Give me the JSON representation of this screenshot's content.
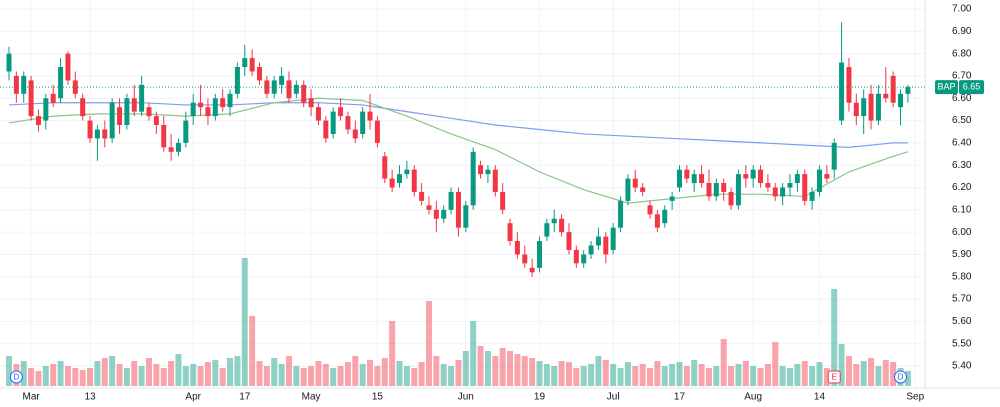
{
  "chart_data": {
    "type": "candlestick",
    "symbol": "BAP",
    "last_price": {
      "value": 6.65,
      "label": "6.65"
    },
    "up_color": "#089981",
    "down_color": "#f23645",
    "open": [
      6.72,
      6.7,
      6.62,
      6.68,
      6.52,
      6.5,
      6.62,
      6.6,
      6.8,
      6.68,
      6.6,
      6.5,
      6.42,
      6.46,
      6.42,
      6.56,
      6.48,
      6.6,
      6.54,
      6.56,
      6.52,
      6.48,
      6.38,
      6.36,
      6.4,
      6.52,
      6.58,
      6.56,
      6.52,
      6.6,
      6.56,
      6.62,
      6.74,
      6.78,
      6.74,
      6.68,
      6.62,
      6.66,
      6.68,
      6.62,
      6.66,
      6.6,
      6.56,
      6.5,
      6.44,
      6.56,
      6.52,
      6.46,
      6.44,
      6.54,
      6.5,
      6.34,
      6.24,
      6.22,
      6.26,
      6.28,
      6.18,
      6.12,
      6.1,
      6.06,
      6.1,
      6.18,
      6.02,
      6.12,
      6.3,
      6.26,
      6.28,
      6.18,
      6.04,
      5.96,
      5.9,
      5.84,
      5.84,
      5.98,
      6.04,
      6.06,
      6.0,
      5.92,
      5.86,
      5.9,
      5.94,
      5.98,
      5.92,
      6.02,
      6.14,
      6.24,
      6.2,
      6.12,
      6.08,
      6.04,
      6.14,
      6.2,
      6.28,
      6.22,
      6.26,
      6.22,
      6.16,
      6.22,
      6.18,
      6.12,
      6.26,
      6.24,
      6.28,
      6.22,
      6.2,
      6.16,
      6.2,
      6.22,
      6.26,
      6.14,
      6.18,
      6.26,
      6.28,
      6.5,
      6.74,
      6.58,
      6.52,
      6.62,
      6.5,
      6.62,
      6.7,
      6.56,
      6.62
    ],
    "high": [
      6.83,
      6.72,
      6.72,
      6.7,
      6.55,
      6.62,
      6.66,
      6.78,
      6.81,
      6.72,
      6.62,
      6.52,
      6.48,
      6.5,
      6.6,
      6.6,
      6.62,
      6.66,
      6.7,
      6.58,
      6.54,
      6.52,
      6.44,
      6.42,
      6.54,
      6.62,
      6.66,
      6.6,
      6.62,
      6.64,
      6.64,
      6.76,
      6.84,
      6.82,
      6.76,
      6.7,
      6.7,
      6.74,
      6.72,
      6.68,
      6.68,
      6.64,
      6.58,
      6.52,
      6.56,
      6.6,
      6.54,
      6.5,
      6.56,
      6.62,
      6.52,
      6.36,
      6.28,
      6.3,
      6.32,
      6.3,
      6.22,
      6.16,
      6.14,
      6.12,
      6.2,
      6.2,
      6.14,
      6.38,
      6.32,
      6.3,
      6.3,
      6.22,
      6.06,
      6.0,
      5.94,
      5.88,
      5.98,
      6.06,
      6.1,
      6.08,
      6.04,
      5.94,
      5.92,
      5.96,
      6.02,
      6.0,
      6.04,
      6.16,
      6.26,
      6.28,
      6.22,
      6.14,
      6.1,
      6.12,
      6.18,
      6.3,
      6.3,
      6.28,
      6.3,
      6.28,
      6.24,
      6.24,
      6.2,
      6.28,
      6.3,
      6.3,
      6.3,
      6.26,
      6.22,
      6.22,
      6.26,
      6.28,
      6.28,
      6.2,
      6.3,
      6.3,
      6.42,
      6.94,
      6.78,
      6.62,
      6.64,
      6.66,
      6.66,
      6.74,
      6.72,
      6.64,
      6.66
    ],
    "low": [
      6.68,
      6.58,
      6.58,
      6.5,
      6.45,
      6.46,
      6.56,
      6.58,
      6.66,
      6.6,
      6.5,
      6.4,
      6.32,
      6.38,
      6.4,
      6.44,
      6.46,
      6.52,
      6.52,
      6.5,
      6.44,
      6.36,
      6.32,
      6.34,
      6.38,
      6.48,
      6.52,
      6.48,
      6.5,
      6.54,
      6.52,
      6.6,
      6.7,
      6.7,
      6.66,
      6.6,
      6.6,
      6.62,
      6.58,
      6.6,
      6.56,
      6.52,
      6.48,
      6.4,
      6.42,
      6.5,
      6.44,
      6.4,
      6.42,
      6.46,
      6.38,
      6.22,
      6.18,
      6.2,
      6.24,
      6.16,
      6.12,
      6.08,
      6.0,
      6.04,
      6.08,
      5.98,
      6.0,
      6.1,
      6.24,
      6.22,
      6.16,
      6.08,
      5.94,
      5.88,
      5.84,
      5.8,
      5.82,
      5.96,
      6.0,
      5.98,
      5.9,
      5.84,
      5.84,
      5.88,
      5.92,
      5.86,
      5.9,
      6.0,
      6.12,
      6.18,
      6.16,
      6.06,
      6.0,
      6.02,
      6.1,
      6.18,
      6.22,
      6.18,
      6.2,
      6.14,
      6.14,
      6.14,
      6.1,
      6.1,
      6.2,
      6.2,
      6.2,
      6.18,
      6.14,
      6.12,
      6.16,
      6.18,
      6.12,
      6.1,
      6.16,
      6.22,
      6.24,
      6.48,
      6.54,
      6.48,
      6.44,
      6.46,
      6.48,
      6.58,
      6.56,
      6.48,
      6.58
    ],
    "close": [
      6.8,
      6.62,
      6.7,
      6.52,
      6.48,
      6.6,
      6.58,
      6.74,
      6.68,
      6.62,
      6.52,
      6.42,
      6.46,
      6.42,
      6.58,
      6.48,
      6.6,
      6.54,
      6.66,
      6.52,
      6.48,
      6.38,
      6.36,
      6.4,
      6.5,
      6.58,
      6.56,
      6.52,
      6.6,
      6.56,
      6.62,
      6.74,
      6.78,
      6.72,
      6.68,
      6.62,
      6.68,
      6.7,
      6.6,
      6.66,
      6.58,
      6.56,
      6.5,
      6.42,
      6.54,
      6.52,
      6.46,
      6.42,
      6.54,
      6.5,
      6.4,
      6.24,
      6.2,
      6.26,
      6.28,
      6.18,
      6.14,
      6.1,
      6.06,
      6.1,
      6.18,
      6.02,
      6.12,
      6.36,
      6.26,
      6.28,
      6.18,
      6.1,
      5.96,
      5.9,
      5.86,
      5.82,
      5.96,
      6.04,
      6.06,
      6.0,
      5.92,
      5.86,
      5.9,
      5.94,
      5.98,
      5.9,
      6.02,
      6.14,
      6.24,
      6.2,
      6.18,
      6.08,
      6.02,
      6.1,
      6.16,
      6.28,
      6.24,
      6.26,
      6.22,
      6.16,
      6.22,
      6.18,
      6.12,
      6.26,
      6.24,
      6.28,
      6.22,
      6.2,
      6.16,
      6.2,
      6.22,
      6.26,
      6.14,
      6.18,
      6.28,
      6.24,
      6.4,
      6.76,
      6.58,
      6.52,
      6.6,
      6.5,
      6.62,
      6.6,
      6.58,
      6.62,
      6.65
    ],
    "volume": [
      30,
      22,
      25,
      18,
      15,
      20,
      22,
      25,
      20,
      18,
      16,
      18,
      25,
      28,
      30,
      22,
      18,
      25,
      20,
      28,
      22,
      18,
      25,
      32,
      20,
      22,
      20,
      24,
      26,
      18,
      28,
      30,
      128,
      70,
      25,
      20,
      28,
      22,
      30,
      20,
      18,
      20,
      25,
      22,
      18,
      20,
      24,
      30,
      22,
      26,
      20,
      28,
      65,
      25,
      20,
      18,
      24,
      85,
      30,
      22,
      20,
      26,
      35,
      65,
      40,
      35,
      30,
      38,
      35,
      32,
      30,
      28,
      25,
      22,
      20,
      25,
      24,
      18,
      20,
      22,
      30,
      26,
      22,
      18,
      24,
      20,
      22,
      18,
      25,
      20,
      22,
      24,
      20,
      26,
      22,
      18,
      20,
      47,
      20,
      22,
      25,
      20,
      18,
      22,
      44,
      20,
      18,
      22,
      25,
      20,
      24,
      18,
      97,
      42,
      30,
      22,
      25,
      28,
      20,
      26,
      24,
      18,
      15
    ],
    "vlim": [
      0,
      140
    ],
    "moving_averages": [
      {
        "color": "#7f9cf0",
        "x": [
          0,
          6,
          12,
          18,
          24,
          30,
          36,
          42,
          48,
          54,
          60,
          66,
          72,
          78,
          84,
          90,
          96,
          102,
          108,
          114,
          120,
          122
        ],
        "values": [
          6.57,
          6.58,
          6.58,
          6.58,
          6.57,
          6.57,
          6.58,
          6.58,
          6.57,
          6.54,
          6.51,
          6.48,
          6.46,
          6.44,
          6.43,
          6.42,
          6.41,
          6.4,
          6.39,
          6.38,
          6.4,
          6.4
        ]
      },
      {
        "color": "#8bc48a",
        "x": [
          0,
          6,
          12,
          18,
          24,
          30,
          36,
          42,
          48,
          54,
          60,
          66,
          72,
          78,
          84,
          90,
          96,
          102,
          108,
          114,
          120,
          122
        ],
        "values": [
          6.49,
          6.52,
          6.53,
          6.53,
          6.52,
          6.53,
          6.58,
          6.6,
          6.59,
          6.52,
          6.44,
          6.37,
          6.27,
          6.19,
          6.13,
          6.15,
          6.17,
          6.17,
          6.16,
          6.27,
          6.34,
          6.36
        ]
      }
    ],
    "events": [
      {
        "index": 1,
        "label": "D"
      },
      {
        "index": 112,
        "label": "E"
      },
      {
        "index": 121,
        "label": "D"
      }
    ],
    "xlim": [
      -1,
      124
    ],
    "xticks": [
      {
        "value": 3,
        "label": "Mar"
      },
      13,
      {
        "value": 25,
        "label": "Apr"
      },
      17,
      {
        "value": 41,
        "label": "May"
      },
      15,
      {
        "value": 62,
        "label": "Jun"
      },
      19,
      {
        "value": 82,
        "label": "Jul"
      },
      17,
      {
        "value": 101,
        "label": "Aug"
      },
      14,
      {
        "value": 123,
        "label": "Sep"
      }
    ],
    "xtick_index": [
      3,
      11,
      25,
      32,
      41,
      50,
      62,
      72,
      82,
      91,
      101,
      110,
      123
    ],
    "ylim": [
      5.4,
      7.0
    ],
    "yticks": [
      {
        "value": 5.4,
        "label": "5.40"
      },
      {
        "value": 5.5,
        "label": "5.50"
      },
      {
        "value": 5.6,
        "label": "5.60"
      },
      {
        "value": 5.7,
        "label": "5.70"
      },
      {
        "value": 5.8,
        "label": "5.80"
      },
      {
        "value": 5.9,
        "label": "5.90"
      },
      {
        "value": 6.0,
        "label": "6.00"
      },
      {
        "value": 6.1,
        "label": "6.10"
      },
      {
        "value": 6.2,
        "label": "6.20"
      },
      {
        "value": 6.3,
        "label": "6.30"
      },
      {
        "value": 6.4,
        "label": "6.40"
      },
      {
        "value": 6.5,
        "label": "6.50"
      },
      {
        "value": 6.6,
        "label": "6.60"
      },
      {
        "value": 6.7,
        "label": "6.70"
      },
      {
        "value": 6.8,
        "label": "6.80"
      },
      {
        "value": 6.9,
        "label": "6.90"
      },
      {
        "value": 7.0,
        "label": "7.00"
      }
    ],
    "grid": true
  }
}
